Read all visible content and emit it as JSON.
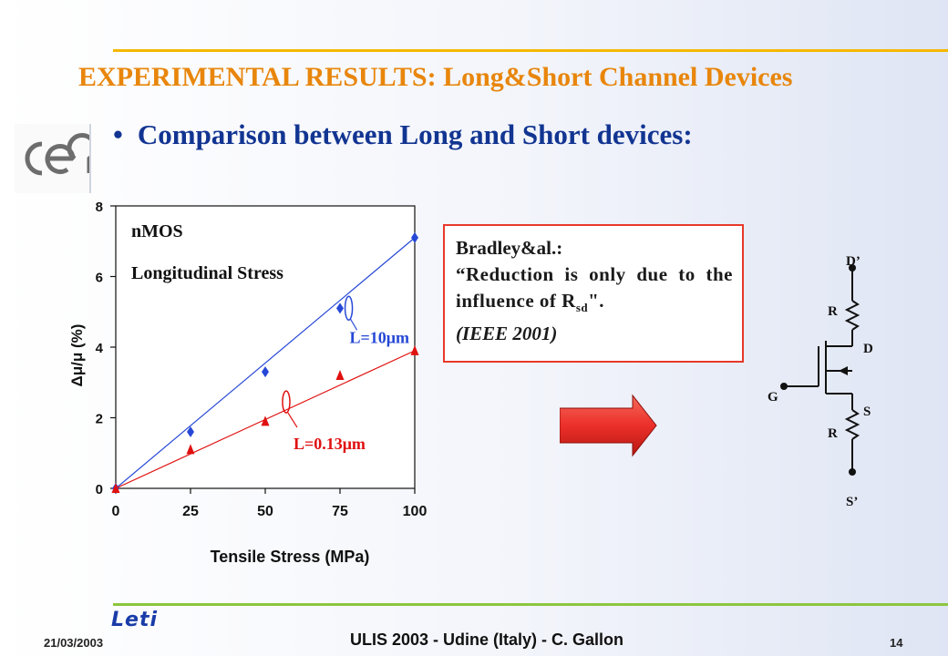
{
  "slide": {
    "title": "EXPERIMENTAL RESULTS: Long&Short Channel Devices",
    "bullet": "Comparison between Long and Short devices:",
    "logo_text": "cea"
  },
  "quote": {
    "author": "Bradley&al.:",
    "body_prefix": "“Reduction is only due to the influence of R",
    "body_sub": "sd",
    "body_suffix": "\".",
    "reference": "(IEEE 2001)"
  },
  "circuit": {
    "labels": {
      "drain_outer": "D’",
      "drain": "D",
      "gate": "G",
      "source": "S",
      "source_outer": "S’",
      "r_top": "R",
      "r_bottom": "R"
    }
  },
  "footer": {
    "logo": "Leti",
    "date": "21/03/2003",
    "center": "ULIS 2003 - Udine (Italy) - C. Gallon",
    "page": "14"
  },
  "colors": {
    "title": "#e8860c",
    "bullet": "#123592",
    "blue_series": "#2648d6",
    "red_series": "#e01010",
    "quote_border": "#e8382a",
    "arrow": "#ec2f2a"
  },
  "chart_data": {
    "type": "scatter",
    "xlabel": "Tensile Stress (MPa)",
    "ylabel": "Δμ/μ (%)",
    "xlim": [
      0,
      100
    ],
    "ylim": [
      0,
      8
    ],
    "xticks": [
      "0",
      "25",
      "50",
      "75",
      "100"
    ],
    "yticks": [
      "0",
      "2",
      "4",
      "6",
      "8"
    ],
    "annotations": [
      "nMOS",
      "Longitudinal Stress"
    ],
    "series": [
      {
        "name": "L=10μm",
        "marker": "diamond",
        "color": "#2648d6",
        "x": [
          0,
          25,
          50,
          75,
          100
        ],
        "y": [
          0,
          1.6,
          3.3,
          5.1,
          7.1
        ],
        "fit": [
          [
            0,
            0
          ],
          [
            100,
            7.1
          ]
        ]
      },
      {
        "name": "L=0.13μm",
        "marker": "triangle",
        "color": "#e01010",
        "x": [
          0,
          25,
          50,
          75,
          100
        ],
        "y": [
          0,
          1.1,
          1.9,
          3.2,
          3.9
        ],
        "fit": [
          [
            0,
            0
          ],
          [
            100,
            3.9
          ]
        ]
      }
    ]
  }
}
